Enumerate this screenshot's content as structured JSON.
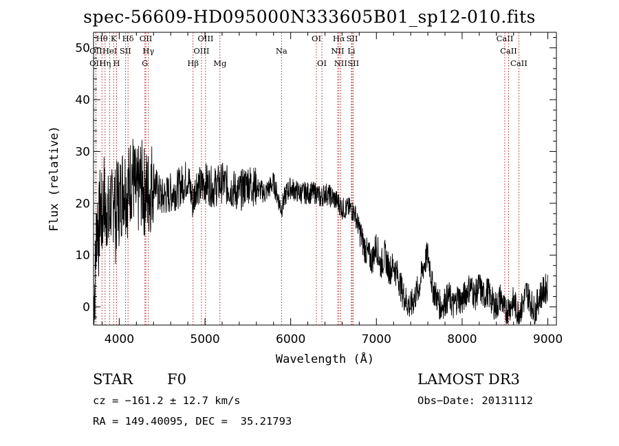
{
  "chart_data": {
    "type": "line",
    "title": "spec-56609-HD095000N333605B01_sp12-010.fits",
    "xlabel": "Wavelength (Å)",
    "ylabel": "Flux (relative)",
    "xlim": [
      3700,
      9100
    ],
    "ylim": [
      -3.5,
      53
    ],
    "x_ticks": [
      4000,
      5000,
      6000,
      7000,
      8000,
      9000
    ],
    "y_ticks": [
      0,
      10,
      20,
      30,
      40,
      50
    ],
    "series": [
      {
        "name": "flux",
        "x": [
          3700,
          3720,
          3740,
          3760,
          3780,
          3800,
          3820,
          3840,
          3860,
          3880,
          3900,
          3920,
          3940,
          3960,
          3980,
          4000,
          4050,
          4100,
          4150,
          4200,
          4250,
          4300,
          4350,
          4400,
          4450,
          4500,
          4600,
          4700,
          4800,
          4861,
          4900,
          4950,
          5000,
          5100,
          5200,
          5300,
          5400,
          5500,
          5600,
          5700,
          5800,
          5890,
          5950,
          6000,
          6100,
          6200,
          6300,
          6350,
          6400,
          6500,
          6563,
          6600,
          6700,
          6750,
          6800,
          6850,
          6900,
          6950,
          7000,
          7050,
          7100,
          7150,
          7200,
          7250,
          7300,
          7350,
          7400,
          7450,
          7500,
          7550,
          7600,
          7625,
          7650,
          7700,
          7750,
          7800,
          7850,
          7900,
          7950,
          8000,
          8050,
          8100,
          8150,
          8200,
          8250,
          8300,
          8350,
          8400,
          8450,
          8500,
          8550,
          8600,
          8650,
          8700,
          8750,
          8800,
          8850,
          8900,
          8950,
          9000
        ],
        "y": [
          0,
          6,
          18,
          14,
          20,
          16,
          22,
          17,
          20,
          15,
          21,
          17,
          24,
          16,
          22,
          20,
          24,
          22,
          26,
          21,
          24,
          22,
          22,
          25,
          22,
          21,
          22,
          23,
          25,
          20,
          24,
          23,
          24,
          23,
          24,
          23,
          22,
          24,
          23,
          22,
          24,
          19,
          22,
          23,
          22,
          22,
          22,
          21,
          22,
          21,
          20,
          19,
          19,
          18,
          15,
          12,
          10,
          9,
          12,
          8,
          10,
          7,
          8,
          6,
          3,
          1,
          0,
          2,
          4,
          8,
          10,
          8,
          4,
          2,
          0,
          1,
          2,
          0,
          2,
          1,
          3,
          4,
          2,
          4,
          2,
          3,
          1,
          0,
          2,
          -1,
          0,
          1,
          -1,
          0,
          3,
          1,
          -1,
          2,
          3,
          4
        ]
      }
    ],
    "lines": [
      {
        "label": "Hθ",
        "x": 3798,
        "row": 0
      },
      {
        "label": "K",
        "x": 3934,
        "row": 0
      },
      {
        "label": "Hδ",
        "x": 4102,
        "row": 0
      },
      {
        "label": "OII",
        "x": 4310,
        "row": 0
      },
      {
        "label": "OIII",
        "x": 5007,
        "row": 0
      },
      {
        "label": "OI",
        "x": 6300,
        "row": 0
      },
      {
        "label": "Hα",
        "x": 6563,
        "row": 0
      },
      {
        "label": "SII",
        "x": 6717,
        "row": 0
      },
      {
        "label": "CaII",
        "x": 8498,
        "row": 0
      },
      {
        "label": "OII",
        "x": 3727,
        "row": 1
      },
      {
        "label": "HeI",
        "x": 3889,
        "row": 1
      },
      {
        "label": "SII",
        "x": 4072,
        "row": 1
      },
      {
        "label": "Hγ",
        "x": 4340,
        "row": 1
      },
      {
        "label": "OIII",
        "x": 4959,
        "row": 1
      },
      {
        "label": "Na",
        "x": 5893,
        "row": 1
      },
      {
        "label": "NII",
        "x": 6548,
        "row": 1
      },
      {
        "label": "Li",
        "x": 6708,
        "row": 1
      },
      {
        "label": "CaII",
        "x": 8542,
        "row": 1
      },
      {
        "label": "OII",
        "x": 3727,
        "row": 2
      },
      {
        "label": "Hη",
        "x": 3835,
        "row": 2
      },
      {
        "label": "H",
        "x": 3969,
        "row": 2
      },
      {
        "label": "G",
        "x": 4300,
        "row": 2
      },
      {
        "label": "Hβ",
        "x": 4861,
        "row": 2
      },
      {
        "label": "Mg",
        "x": 5175,
        "row": 2
      },
      {
        "label": "OI",
        "x": 6364,
        "row": 2
      },
      {
        "label": "NII",
        "x": 6583,
        "row": 2
      },
      {
        "label": "SII",
        "x": 6731,
        "row": 2
      },
      {
        "label": "CaII",
        "x": 8662,
        "row": 2
      }
    ]
  },
  "info": {
    "class": "STAR",
    "subclass": "F0",
    "survey": "LAMOST DR3",
    "cz": "cz = −161.2 ± 12.7 km/s",
    "obs_date": "Obs−Date: 20131112",
    "radec": "RA = 149.40095, DEC =  35.21793"
  }
}
